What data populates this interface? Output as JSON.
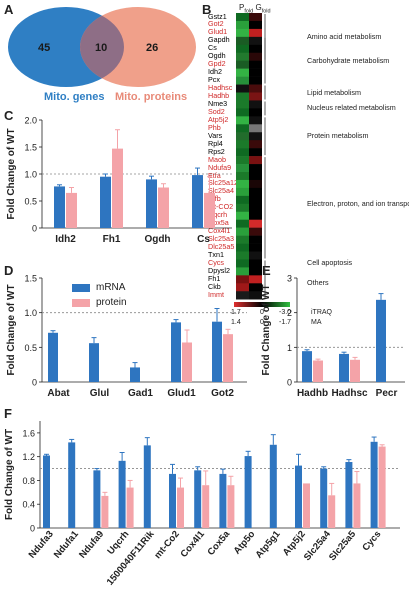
{
  "panels": {
    "A": "A",
    "B": "B",
    "C": "C",
    "D": "D",
    "E": "E",
    "F": "F"
  },
  "venn": {
    "left_count": "45",
    "overlap_count": "10",
    "right_count": "26",
    "left_label": "Mito. genes",
    "right_label": "Mito. proteins",
    "left_color": "#2f7fc4",
    "right_color": "#f0a08a",
    "overlap_color": "#8e6e86"
  },
  "heatmap": {
    "col_header_1": "P",
    "col_header_1_sub": "fold",
    "col_header_2": "G",
    "col_header_2_sub": "fold",
    "genes": [
      {
        "name": "Gstz1",
        "color": "#000000"
      },
      {
        "name": "Got2",
        "color": "#d02a2a"
      },
      {
        "name": "Glud1",
        "color": "#d02a2a"
      },
      {
        "name": "Gapdh",
        "color": "#000000"
      },
      {
        "name": "Cs",
        "color": "#000000"
      },
      {
        "name": "Ogdh",
        "color": "#000000"
      },
      {
        "name": "Gpd2",
        "color": "#d02a2a"
      },
      {
        "name": "Idh2",
        "color": "#000000"
      },
      {
        "name": "Pcx",
        "color": "#000000"
      },
      {
        "name": "Hadhsc",
        "color": "#d02a2a"
      },
      {
        "name": "Hadhb",
        "color": "#d02a2a"
      },
      {
        "name": "Nme3",
        "color": "#000000"
      },
      {
        "name": "Sod2",
        "color": "#d02a2a"
      },
      {
        "name": "Atp5j2",
        "color": "#d02a2a"
      },
      {
        "name": "Phb",
        "color": "#d02a2a"
      },
      {
        "name": "Vars",
        "color": "#000000"
      },
      {
        "name": "Rpl4",
        "color": "#000000"
      },
      {
        "name": "Rps2",
        "color": "#000000"
      },
      {
        "name": "Maob",
        "color": "#d02a2a"
      },
      {
        "name": "Ndufa9",
        "color": "#d02a2a"
      },
      {
        "name": "Etfa",
        "color": "#d02a2a"
      },
      {
        "name": "Slc25a12",
        "color": "#d02a2a"
      },
      {
        "name": "Slc25a4",
        "color": "#d02a2a"
      },
      {
        "name": "Etfb",
        "color": "#d02a2a"
      },
      {
        "name": "mt-CO2",
        "color": "#d02a2a"
      },
      {
        "name": "Uqcrh",
        "color": "#d02a2a"
      },
      {
        "name": "Cox5a",
        "color": "#d02a2a"
      },
      {
        "name": "Cox4l1",
        "color": "#d02a2a"
      },
      {
        "name": "Slc25a3",
        "color": "#d02a2a"
      },
      {
        "name": "Dlc25a5",
        "color": "#d02a2a"
      },
      {
        "name": "Txn1",
        "color": "#000000"
      },
      {
        "name": "Cycs",
        "color": "#d02a2a"
      },
      {
        "name": "Dpysl2",
        "color": "#000000"
      },
      {
        "name": "Fh1",
        "color": "#000000"
      },
      {
        "name": "Ckb",
        "color": "#000000"
      },
      {
        "name": "Immt",
        "color": "#d02a2a"
      }
    ],
    "col1_colors": [
      "#0f6a22",
      "#2aa03b",
      "#33b344",
      "#1a5c24",
      "#0f6a22",
      "#227a2e",
      "#1a5c24",
      "#33b344",
      "#26913a",
      "#111111",
      "#1b7a2a",
      "#1b7a2a",
      "#0f6a22",
      "#33b344",
      "#0f6a22",
      "#226c2c",
      "#1b7a2a",
      "#0f6a22",
      "#1b7a2a",
      "#26913a",
      "#1b7a2a",
      "#33b344",
      "#2aa03b",
      "#0f6a22",
      "#1b7a2a",
      "#33b344",
      "#0f6a22",
      "#2aa03b",
      "#1b7a2a",
      "#0f6a22",
      "#1b7a2a",
      "#0f6a22",
      "#2aa03b",
      "#7a1111",
      "#a01818",
      "#1a1a1a"
    ],
    "col2_colors": [
      "#3a0a0a",
      "#000000",
      "#c02020",
      "#111111",
      "#000000",
      "#2a0808",
      "#000000",
      "#000000",
      "#000000",
      "#4a0c0c",
      "#7a1414",
      "#111111",
      "#000000",
      "#111111",
      "#777777",
      "#111111",
      "#3a0a0a",
      "#000000",
      "#7a1111",
      "#000000",
      "#000000",
      "#1a0606",
      "#000000",
      "#000000",
      "#000000",
      "#000000",
      "#d42a2a",
      "#3a0a0a",
      "#000000",
      "#000000",
      "#111111",
      "#000000",
      "#000000",
      "#c02020",
      "#000000",
      "#101010"
    ],
    "categories": [
      {
        "label": "Amino acid metabolism",
        "gene_start": 0,
        "gene_end": 5
      },
      {
        "label": "Carbohydrate metabolism",
        "gene_start": 3,
        "gene_end": 8
      },
      {
        "label": "Lipid metabolism",
        "gene_start": 9,
        "gene_end": 10
      },
      {
        "label": "Nucleus related metabolism",
        "gene_start": 11,
        "gene_end": 12
      },
      {
        "label": "Protein metabolism",
        "gene_start": 13,
        "gene_end": 17
      },
      {
        "label": "Electron, proton, and ion transporters",
        "gene_start": 18,
        "gene_end": 30
      },
      {
        "label": "Cell apoptosis",
        "gene_start": 31,
        "gene_end": 31
      },
      {
        "label": "Others",
        "gene_start": 32,
        "gene_end": 35
      }
    ],
    "scale_row1": [
      "1.7",
      "0",
      "-3.0",
      "iTRAQ"
    ],
    "scale_row2": [
      "1.4",
      "0",
      "-1.7",
      "MA"
    ]
  },
  "chart_data": [
    {
      "id": "C",
      "type": "bar",
      "ylabel": "Fold Change of WT",
      "ylim": [
        0,
        2.0
      ],
      "yticks": [
        "0",
        "0.5",
        "1.0",
        "1.5",
        "2.0"
      ],
      "reference_line": 1.0,
      "categories": [
        "Idh2",
        "Fh1",
        "Ogdh",
        "Cs"
      ],
      "series": [
        {
          "name": "mRNA",
          "color": "#2e75c0",
          "values": [
            0.77,
            0.95,
            0.9,
            0.98
          ],
          "errors": [
            0.03,
            0.05,
            0.06,
            0.13
          ]
        },
        {
          "name": "protein",
          "color": "#f4a3a8",
          "values": [
            0.65,
            1.47,
            0.75,
            0.65
          ],
          "errors": [
            0.1,
            0.35,
            0.07,
            0.3
          ]
        }
      ]
    },
    {
      "id": "D",
      "type": "bar",
      "ylabel": "Fold Change of WT",
      "ylim": [
        0,
        1.5
      ],
      "yticks": [
        "0",
        "0.5",
        "1.0",
        "1.5"
      ],
      "reference_line": 1.0,
      "legend": [
        "mRNA",
        "protein"
      ],
      "categories": [
        "Abat",
        "Glul",
        "Gad1",
        "Glud1",
        "Got2"
      ],
      "series": [
        {
          "name": "mRNA",
          "color": "#2e75c0",
          "values": [
            0.71,
            0.56,
            0.21,
            0.86,
            0.87
          ],
          "errors": [
            0.03,
            0.08,
            0.07,
            0.04,
            0.19
          ]
        },
        {
          "name": "protein",
          "color": "#f4a3a8",
          "values": [
            null,
            null,
            null,
            0.57,
            0.69
          ],
          "errors": [
            null,
            null,
            null,
            0.18,
            0.07
          ]
        }
      ]
    },
    {
      "id": "E",
      "type": "bar",
      "ylabel": "Fold Change of WT",
      "ylim": [
        0,
        3
      ],
      "yticks": [
        "0",
        "1",
        "2",
        "3"
      ],
      "reference_line": 1.0,
      "categories": [
        "Hadhb",
        "Hadhsc",
        "Pecr"
      ],
      "series": [
        {
          "name": "mRNA",
          "color": "#2e75c0",
          "values": [
            0.89,
            0.81,
            2.37
          ],
          "errors": [
            0.04,
            0.05,
            0.18
          ]
        },
        {
          "name": "protein",
          "color": "#f4a3a8",
          "values": [
            0.62,
            0.64,
            null
          ],
          "errors": [
            0.04,
            0.07,
            null
          ]
        }
      ]
    },
    {
      "id": "F",
      "type": "bar",
      "ylabel": "Fold Change of WT",
      "ylim": [
        0,
        1.8
      ],
      "yticks": [
        "0",
        "0.4",
        "0.8",
        "1.2",
        "1.6"
      ],
      "reference_line": 1.0,
      "categories": [
        "Ndufa3",
        "Ndufa1",
        "Ndufa9",
        "Uqcrh",
        "1500040F11Rik",
        "mt-Co2",
        "Cox4l1",
        "Cox5a",
        "Atp5o",
        "Atp5g1",
        "Atp5j2",
        "Slc25a4",
        "Slc25a5",
        "Cycs"
      ],
      "series": [
        {
          "name": "mRNA",
          "color": "#2e75c0",
          "values": [
            1.22,
            1.44,
            0.97,
            1.13,
            1.39,
            0.91,
            0.97,
            0.91,
            1.21,
            1.4,
            1.05,
            1.0,
            1.11,
            1.45
          ],
          "errors": [
            0.02,
            0.05,
            0.03,
            0.14,
            0.13,
            0.16,
            0.06,
            0.08,
            0.08,
            0.17,
            0.19,
            0.03,
            0.04,
            0.08
          ]
        },
        {
          "name": "protein",
          "color": "#f4a3a8",
          "values": [
            null,
            null,
            0.54,
            0.68,
            null,
            0.68,
            0.72,
            0.72,
            null,
            null,
            0.75,
            0.55,
            0.75,
            1.37
          ],
          "errors": [
            null,
            null,
            0.06,
            0.12,
            null,
            0.16,
            0.24,
            0.15,
            null,
            null,
            null,
            0.2,
            0.2,
            0.03
          ]
        }
      ]
    }
  ]
}
